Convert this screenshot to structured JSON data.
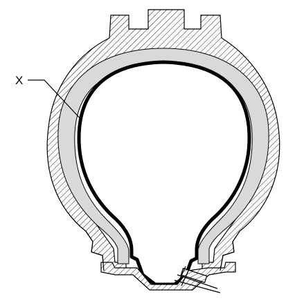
{
  "diagram": {
    "callout_label": "X",
    "parts": {
      "tread": "tread-casing",
      "liner": "inner-liner",
      "tube": "inner-tube",
      "rim": "wheel-rim",
      "valve": "valve-stem"
    },
    "colors": {
      "stroke": "#000000",
      "hatch": "#000000",
      "liner_fill": "#d9d9d9",
      "background": "#ffffff"
    }
  }
}
